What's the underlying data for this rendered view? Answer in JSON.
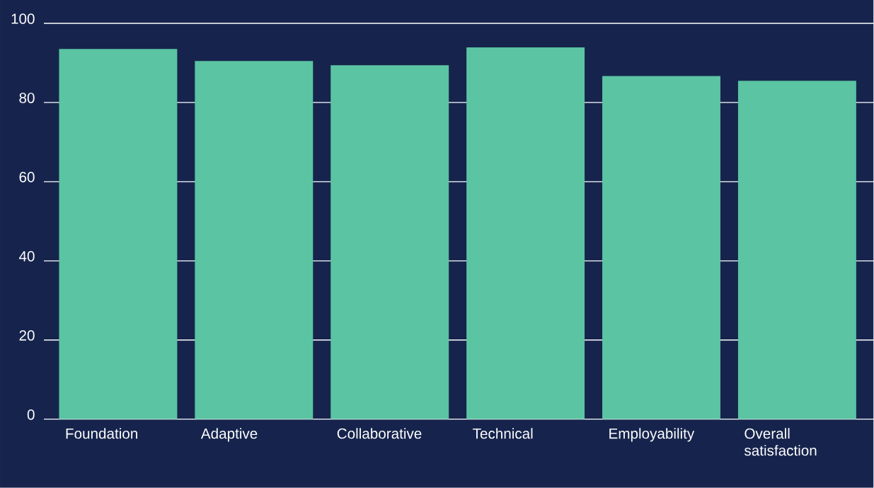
{
  "chart_data": {
    "type": "bar",
    "categories": [
      "Foundation",
      "Adaptive",
      "Collaborative",
      "Technical",
      "Employability",
      "Overall satisfaction"
    ],
    "values": [
      93.5,
      90.5,
      89.4,
      93.9,
      86.7,
      85.5
    ],
    "color": "#5bc4a2",
    "ylim": [
      0,
      100
    ],
    "yticks": [
      0,
      20,
      40,
      60,
      80,
      100
    ],
    "grid": "y"
  }
}
